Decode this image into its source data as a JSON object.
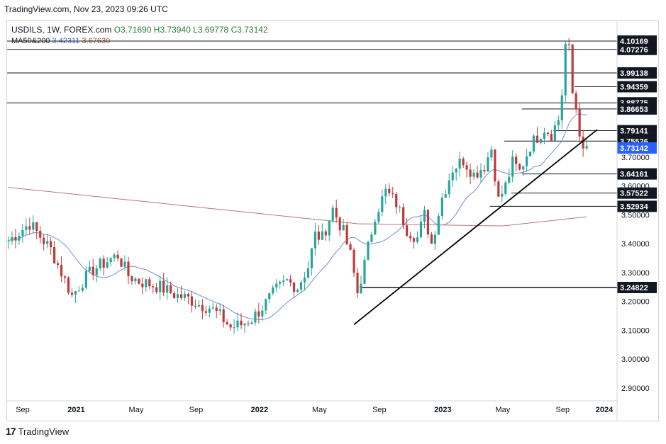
{
  "header": {
    "source_line": "TradingView.com, Nov 23, 2023 09:26 UTC"
  },
  "legend": {
    "symbol": "USDILS, 1W, FOREX.com",
    "open": "O3.71690",
    "high": "H3.73940",
    "low": "L3.69778",
    "close": "C3.73142",
    "ma_label": "MA50&200",
    "ma50": "3.42311",
    "ma200": "3.67630"
  },
  "footer": {
    "logo": "17",
    "brand": "TradingView"
  },
  "colors": {
    "up": "#26a69a",
    "down": "#c2393b",
    "ma_fast": "#6f8fd6",
    "ma_slow": "#b27b74",
    "level_line": "#131722",
    "current_price": "#2962ff"
  },
  "chart_data": {
    "type": "candlestick",
    "title": "USDILS, 1W, FOREX.com",
    "ylim": [
      2.85,
      4.15
    ],
    "y_ticks": [
      "4.10169",
      "4.07276",
      "3.99138",
      "3.94359",
      "3.88775",
      "3.86653",
      "3.79141",
      "3.75526",
      "3.73142",
      "3.70000",
      "3.64161",
      "3.60000",
      "3.57522",
      "3.52934",
      "3.50000",
      "3.40000",
      "3.30000",
      "3.24822",
      "3.20000",
      "3.10000",
      "3.00000",
      "2.90000"
    ],
    "x_ticks": [
      "Sep",
      "2021",
      "May",
      "Sep",
      "2022",
      "May",
      "Sep",
      "2023",
      "May",
      "Sep",
      "2024"
    ],
    "horizontal_levels": [
      {
        "label": "4.10169",
        "value": 4.10169,
        "start_week": 0
      },
      {
        "label": "4.07276",
        "value": 4.07276,
        "start_week": 0
      },
      {
        "label": "3.99138",
        "value": 3.99138,
        "start_week": 0
      },
      {
        "label": "3.94359",
        "value": 3.94359,
        "start_week": 161
      },
      {
        "label": "3.88775",
        "value": 3.88775,
        "start_week": 0
      },
      {
        "label": "3.86653",
        "value": 3.86653,
        "start_week": 146
      },
      {
        "label": "3.79141",
        "value": 3.79141,
        "start_week": 155
      },
      {
        "label": "3.75526",
        "value": 3.75526,
        "start_week": 141
      },
      {
        "label": "3.73142",
        "value": 3.73142,
        "start_week": 163,
        "current": true
      },
      {
        "label": "3.64161",
        "value": 3.64161,
        "start_week": 146
      },
      {
        "label": "3.57522",
        "value": 3.57522,
        "start_week": 143
      },
      {
        "label": "3.52934",
        "value": 3.52934,
        "start_week": 137
      },
      {
        "label": "3.24822",
        "value": 3.24822,
        "start_week": 100
      }
    ],
    "trendline": {
      "start_week": 98,
      "start_value": 3.12,
      "end_week": 167,
      "end_value": 3.795
    },
    "ma_fast_name": "MA50",
    "ma_slow_name": "MA200",
    "weeks": 166
  }
}
